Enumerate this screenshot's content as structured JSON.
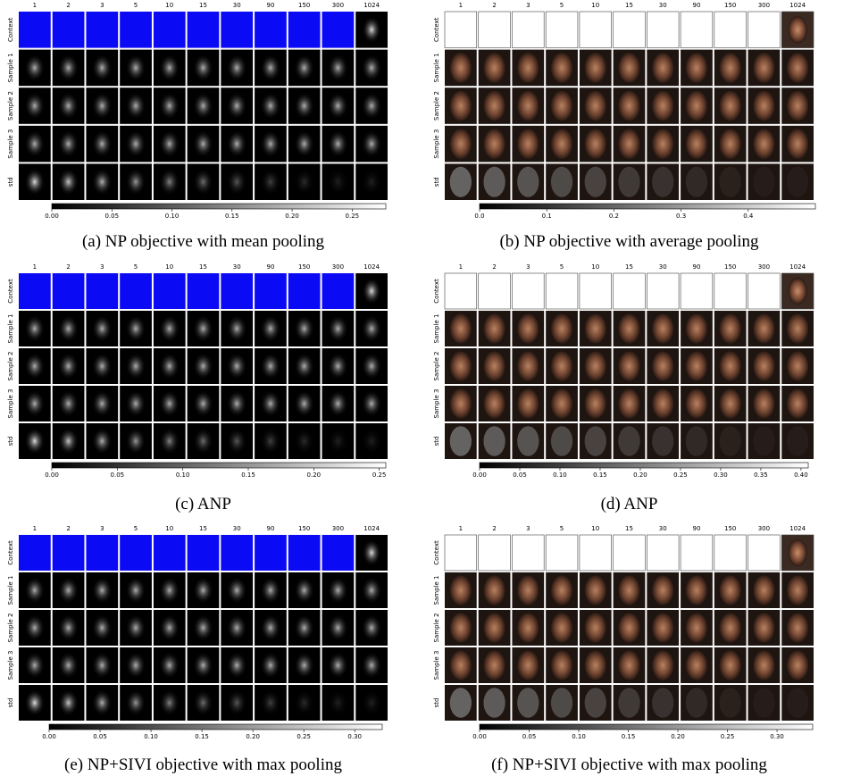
{
  "panels": [
    {
      "columns": [
        1,
        2,
        3,
        5,
        10,
        15,
        30,
        90,
        150,
        300,
        1024
      ],
      "rows": [
        "Context",
        "Sample 1",
        "Sample 2",
        "Sample 3",
        "std"
      ],
      "colorbar": {
        "lim": [
          0,
          0.278
        ],
        "ticks": [
          {
            "value": 0,
            "label": "0.00"
          },
          0.05,
          {
            "value": 0.1,
            "label": "0.10"
          },
          0.15,
          {
            "value": 0.2,
            "label": "0.20"
          },
          0.25
        ]
      },
      "caption": "(a) NP objective with mean pooling"
    },
    {
      "columns": [
        1,
        2,
        3,
        5,
        10,
        15,
        30,
        90,
        150,
        300,
        1024
      ],
      "rows": [
        "Context",
        "Sample 1",
        "Sample 2",
        "Sample 3",
        "std"
      ],
      "colorbar": {
        "lim": [
          0,
          0.5
        ],
        "ticks": [
          {
            "value": 0,
            "label": "0.0"
          },
          0.1,
          0.2,
          0.3,
          0.4
        ]
      },
      "caption": "(b) NP objective with average pooling"
    },
    {
      "columns": [
        1,
        2,
        3,
        5,
        10,
        15,
        30,
        90,
        150,
        300,
        1024
      ],
      "rows": [
        "Context",
        "Sample 1",
        "Sample 2",
        "Sample 3",
        "std"
      ],
      "colorbar": {
        "lim": [
          0,
          0.255
        ],
        "ticks": [
          {
            "value": 0,
            "label": "0.00"
          },
          0.05,
          {
            "value": 0.1,
            "label": "0.10"
          },
          0.15,
          {
            "value": 0.2,
            "label": "0.20"
          },
          0.25
        ]
      },
      "caption": "(c) ANP"
    },
    {
      "columns": [
        1,
        2,
        3,
        5,
        10,
        15,
        30,
        90,
        150,
        300,
        1024
      ],
      "rows": [
        "Context",
        "Sample 1",
        "Sample 2",
        "Sample 3",
        "std"
      ],
      "colorbar": {
        "lim": [
          0,
          0.409
        ],
        "ticks": [
          {
            "value": 0,
            "label": "0.00"
          },
          0.05,
          {
            "value": 0.1,
            "label": "0.10"
          },
          0.15,
          {
            "value": 0.2,
            "label": "0.20"
          },
          0.25,
          {
            "value": 0.3,
            "label": "0.30"
          },
          0.35,
          {
            "value": 0.4,
            "label": "0.40"
          }
        ]
      },
      "caption": "(d) ANP"
    },
    {
      "columns": [
        1,
        2,
        3,
        5,
        10,
        15,
        30,
        90,
        150,
        300,
        1024
      ],
      "rows": [
        "Context",
        "Sample 1",
        "Sample 2",
        "Sample 3",
        "std"
      ],
      "colorbar": {
        "lim": [
          0,
          0.327
        ],
        "ticks": [
          {
            "value": 0,
            "label": "0.00"
          },
          0.05,
          {
            "value": 0.1,
            "label": "0.10"
          },
          0.15,
          {
            "value": 0.2,
            "label": "0.20"
          },
          0.25,
          {
            "value": 0.3,
            "label": "0.30"
          }
        ]
      },
      "caption": "(e) NP+SIVI objective with max pooling"
    },
    {
      "columns": [
        1,
        2,
        3,
        5,
        10,
        15,
        30,
        90,
        150,
        300,
        1024
      ],
      "rows": [
        "Context",
        "Sample 1",
        "Sample 2",
        "Sample 3",
        "std"
      ],
      "colorbar": {
        "lim": [
          0,
          0.336
        ],
        "ticks": [
          {
            "value": 0,
            "label": "0.00"
          },
          0.05,
          {
            "value": 0.1,
            "label": "0.10"
          },
          0.15,
          {
            "value": 0.2,
            "label": "0.20"
          },
          0.25,
          {
            "value": 0.3,
            "label": "0.30"
          }
        ]
      },
      "caption": "(f) NP+SIVI objective with max pooling"
    }
  ]
}
